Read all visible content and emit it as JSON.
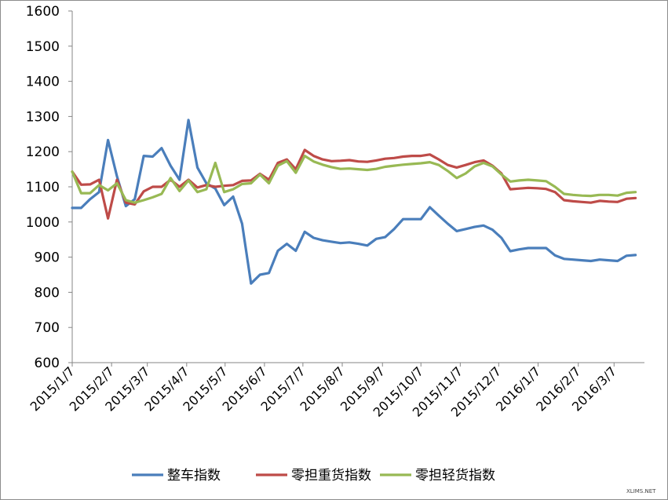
{
  "chart_data": {
    "type": "line",
    "title": "",
    "xlabel": "",
    "ylabel": "",
    "ylim": [
      600,
      1600
    ],
    "yticks": [
      600,
      700,
      800,
      900,
      1000,
      1100,
      1200,
      1300,
      1400,
      1500,
      1600
    ],
    "grid": false,
    "legend": "bottom",
    "x_tick_labels": [
      "2015/1/7",
      "2015/2/7",
      "2015/3/7",
      "2015/4/7",
      "2015/5/7",
      "2015/6/7",
      "2015/7/7",
      "2015/8/7",
      "2015/9/7",
      "2015/10/7",
      "2015/11/7",
      "2015/12/7",
      "2016/1/7",
      "2016/2/7",
      "2016/3/7"
    ],
    "x_tick_positions": [
      0,
      4.4,
      8.4,
      12.8,
      17.1,
      21.5,
      25.8,
      30.2,
      34.7,
      39,
      43.4,
      47.7,
      52.1,
      56.6,
      60.6
    ],
    "x_range": [
      0,
      64
    ],
    "series": [
      {
        "name": "整车指数",
        "color": "#4a7ebb",
        "values": [
          1040,
          1040,
          1065,
          1085,
          1233,
          1130,
          1045,
          1065,
          1188,
          1186,
          1210,
          1160,
          1120,
          1290,
          1155,
          1110,
          1095,
          1048,
          1072,
          995,
          825,
          850,
          855,
          918,
          938,
          918,
          972,
          955,
          948,
          944,
          940,
          942,
          938,
          933,
          952,
          957,
          980,
          1008,
          1008,
          1008,
          1042,
          1018,
          995,
          974,
          980,
          986,
          990,
          978,
          955,
          917,
          922,
          926,
          926,
          926,
          905,
          895,
          893,
          891,
          889,
          893,
          891,
          889,
          904,
          906
        ]
      },
      {
        "name": "零担重货指数",
        "color": "#be4b48",
        "values": [
          1143,
          1106,
          1107,
          1120,
          1010,
          1120,
          1055,
          1050,
          1087,
          1100,
          1100,
          1120,
          1100,
          1120,
          1098,
          1105,
          1100,
          1103,
          1105,
          1117,
          1118,
          1137,
          1120,
          1168,
          1178,
          1150,
          1205,
          1188,
          1178,
          1173,
          1174,
          1176,
          1172,
          1171,
          1175,
          1180,
          1182,
          1186,
          1188,
          1188,
          1192,
          1178,
          1162,
          1155,
          1162,
          1170,
          1175,
          1160,
          1138,
          1093,
          1095,
          1097,
          1096,
          1094,
          1085,
          1062,
          1059,
          1057,
          1055,
          1060,
          1058,
          1057,
          1066,
          1068
        ]
      },
      {
        "name": "零担轻货指数",
        "color": "#98b954",
        "values": [
          1143,
          1082,
          1082,
          1105,
          1090,
          1110,
          1062,
          1055,
          1062,
          1070,
          1080,
          1125,
          1088,
          1118,
          1085,
          1093,
          1168,
          1085,
          1093,
          1108,
          1110,
          1135,
          1110,
          1160,
          1173,
          1140,
          1188,
          1172,
          1163,
          1156,
          1151,
          1152,
          1150,
          1148,
          1151,
          1157,
          1160,
          1163,
          1165,
          1167,
          1170,
          1162,
          1145,
          1125,
          1138,
          1158,
          1168,
          1158,
          1135,
          1115,
          1118,
          1120,
          1118,
          1116,
          1100,
          1080,
          1077,
          1075,
          1074,
          1077,
          1077,
          1075,
          1083,
          1085
        ]
      }
    ]
  },
  "watermark": "XLIMS.NET"
}
